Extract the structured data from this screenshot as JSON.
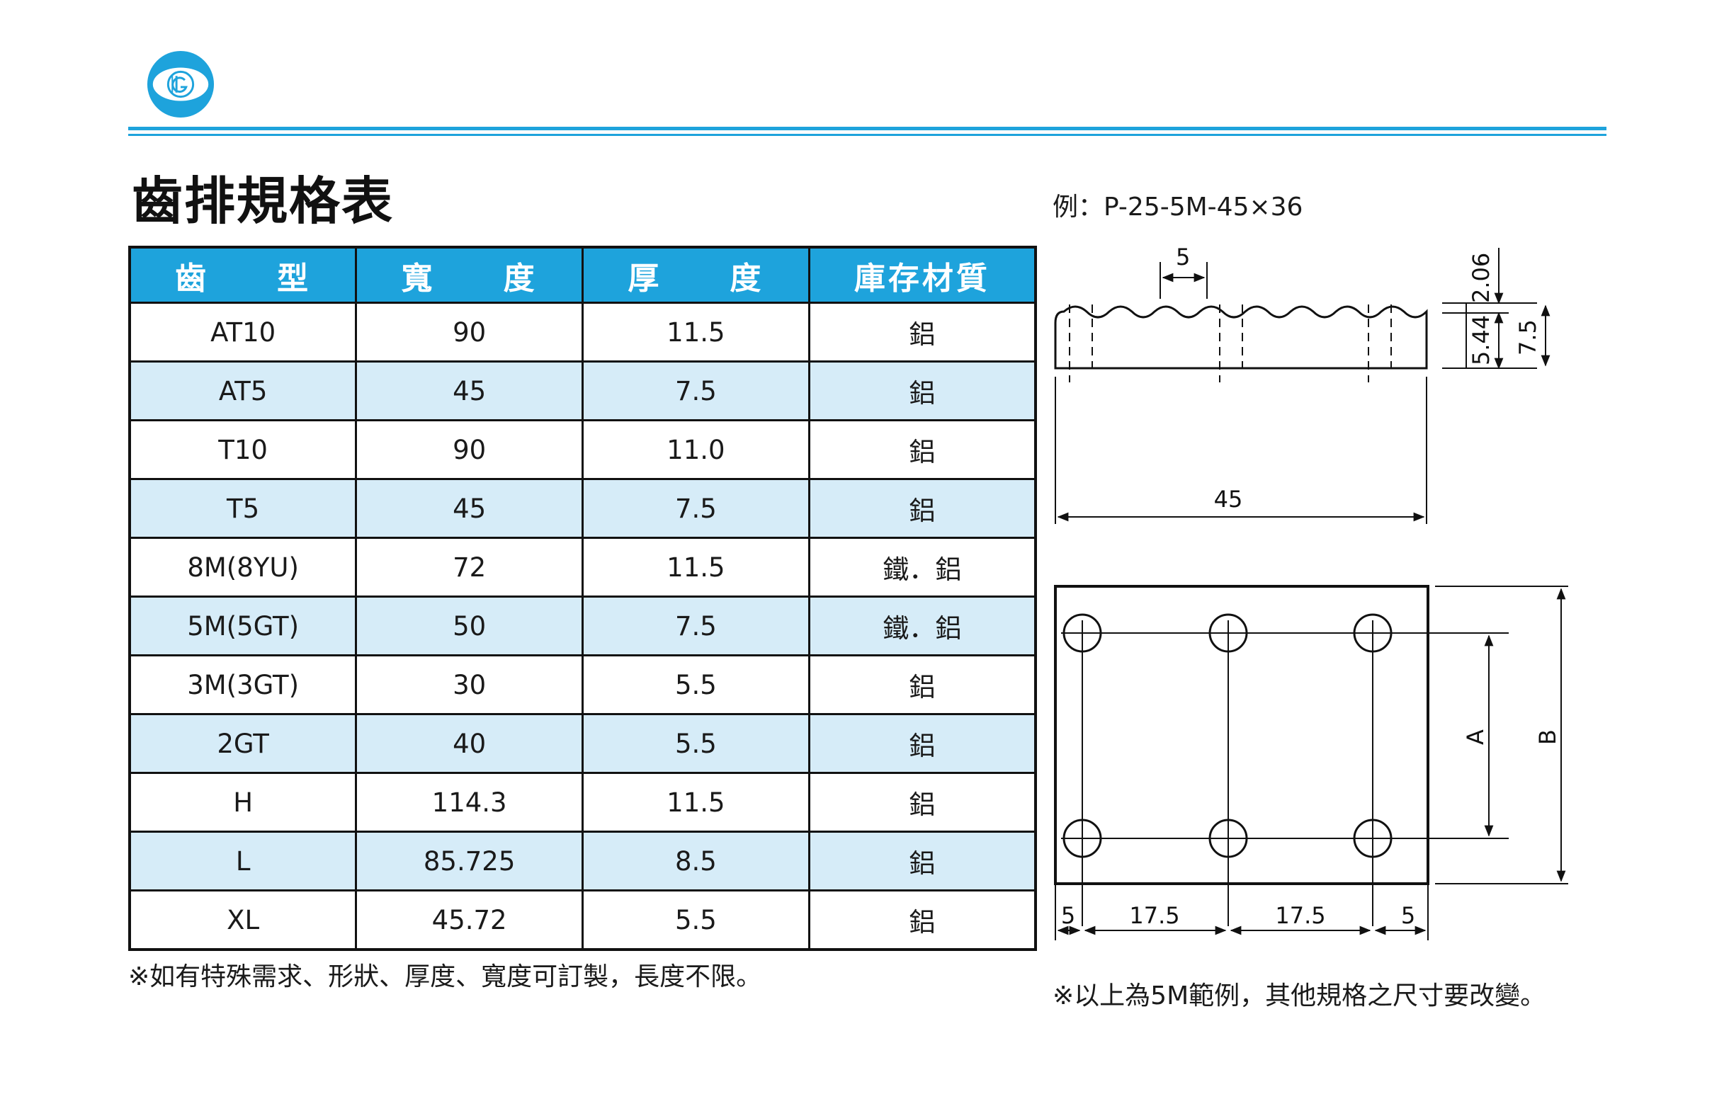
{
  "page": {
    "title": "齒排規格表",
    "example": "例：P-25-5M-45×36",
    "note_left": "※如有特殊需求、形狀、厚度、寬度可訂製，長度不限。",
    "note_right": "※以上為5M範例，其他規格之尺寸要改變。"
  },
  "table": {
    "headers": [
      "齒　　型",
      "寬　　度",
      "厚　　度",
      "庫存材質"
    ],
    "rows": [
      [
        "AT10",
        "90",
        "11.5",
        "鋁"
      ],
      [
        "AT5",
        "45",
        "7.5",
        "鋁"
      ],
      [
        "T10",
        "90",
        "11.0",
        "鋁"
      ],
      [
        "T5",
        "45",
        "7.5",
        "鋁"
      ],
      [
        "8M(8YU)",
        "72",
        "11.5",
        "鐵．鋁"
      ],
      [
        "5M(5GT)",
        "50",
        "7.5",
        "鐵．鋁"
      ],
      [
        "3M(3GT)",
        "30",
        "5.5",
        "鋁"
      ],
      [
        "2GT",
        "40",
        "5.5",
        "鋁"
      ],
      [
        "H",
        "114.3",
        "11.5",
        "鋁"
      ],
      [
        "L",
        "85.725",
        "8.5",
        "鋁"
      ],
      [
        "XL",
        "45.72",
        "5.5",
        "鋁"
      ]
    ]
  },
  "drawing": {
    "dims": {
      "pitch": "5",
      "tooth_depth": "2.06",
      "base": "5.44",
      "thickness": "7.5",
      "width": "45",
      "a": "A",
      "b": "B",
      "edge_left": "5",
      "spacing_1": "17.5",
      "spacing_2": "17.5",
      "edge_right": "5"
    }
  },
  "colors": {
    "accent": "#1ea3dc",
    "row_alt": "#d6ecf8",
    "ink": "#111111"
  }
}
